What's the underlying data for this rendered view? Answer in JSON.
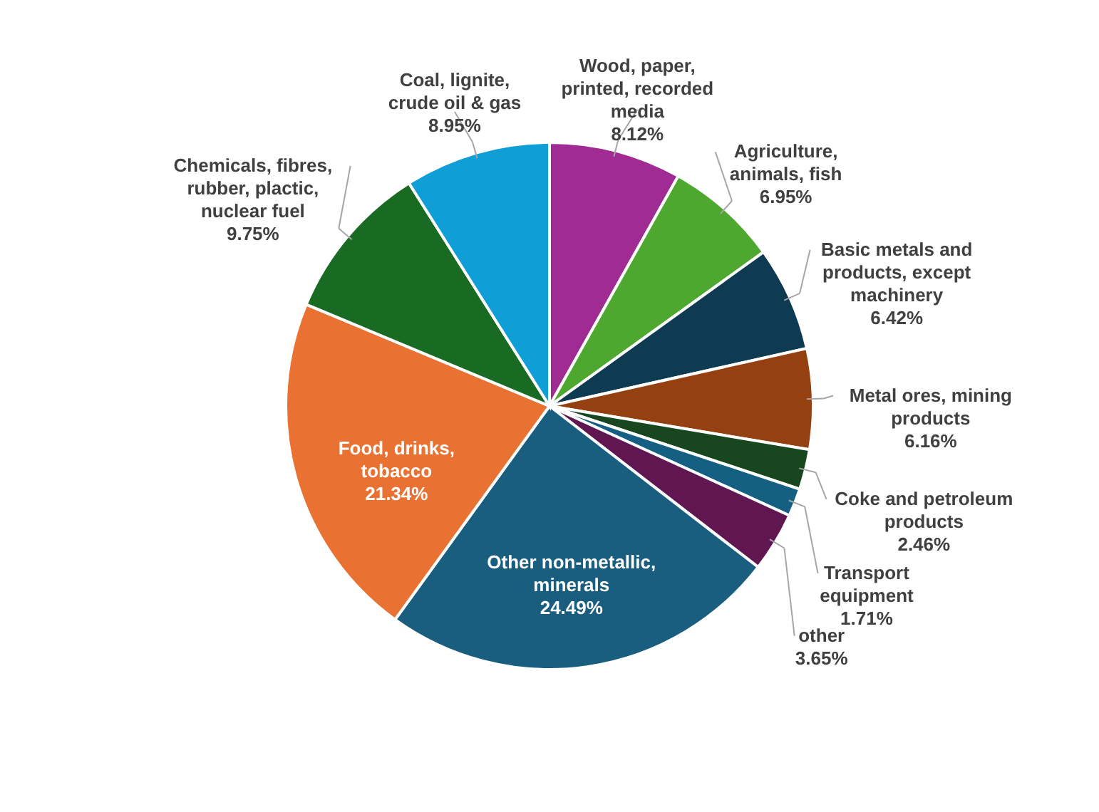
{
  "chart_data": {
    "type": "pie",
    "categories": [
      "Wood, paper, printed, recorded media",
      "Agriculture, animals, fish",
      "Basic metals and products, except machinery",
      "Metal ores, mining products",
      "Coke and petroleum products",
      "Transport equipment",
      "other",
      "Other non-metallic, minerals",
      "Food, drinks, tobacco",
      "Chemicals, fibres, rubber, plactic, nuclear fuel",
      "Coal, lignite, crude oil & gas"
    ],
    "values": [
      8.12,
      6.95,
      6.42,
      6.16,
      2.46,
      1.71,
      3.65,
      24.49,
      21.34,
      9.75,
      8.95
    ],
    "colors": [
      "#a02b93",
      "#4ea72e",
      "#0e3a52",
      "#954010",
      "#17461f",
      "#156082",
      "#5f1651",
      "#195e7e",
      "#e97132",
      "#196b24",
      "#0f9ed5"
    ],
    "value_labels": [
      "8.12%",
      "6.95%",
      "6.42%",
      "6.16%",
      "2.46%",
      "1.71%",
      "3.65%",
      "24.49%",
      "21.34%",
      "9.75%",
      "8.95%"
    ]
  }
}
